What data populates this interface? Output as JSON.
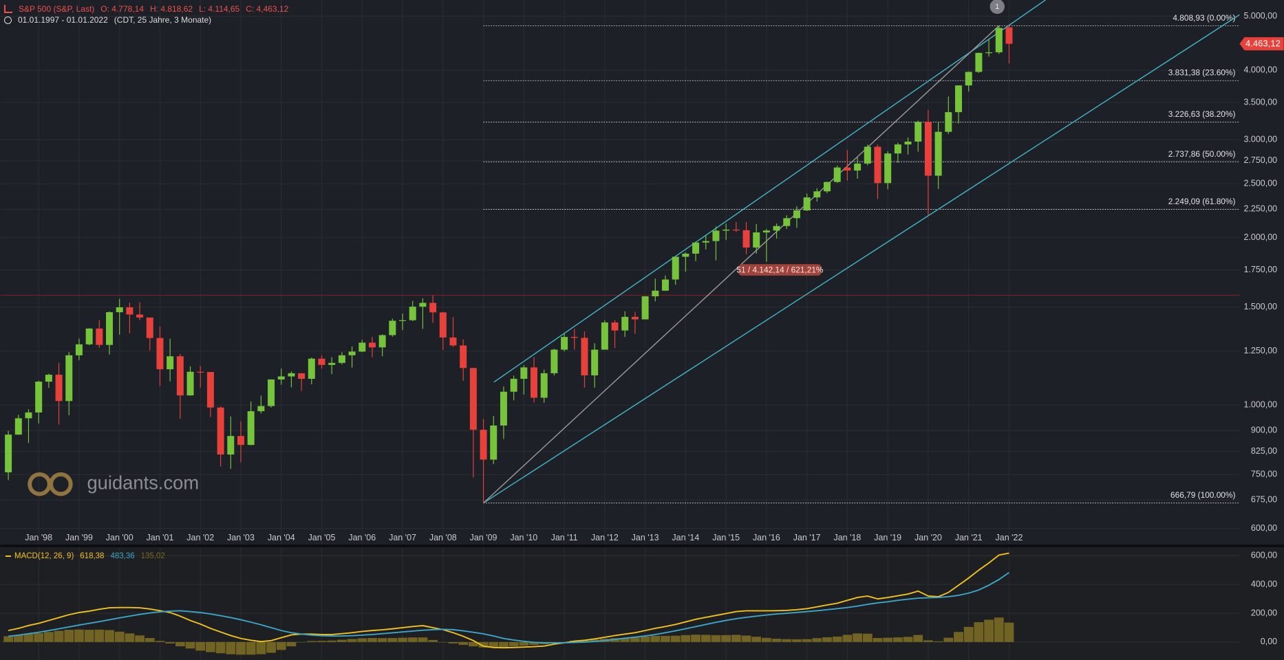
{
  "chart_data": [
    {
      "type": "candlestick",
      "title": "S&P 500 (S&P, Last)",
      "ohlc_labels": [
        "O: 4.778,14",
        "H: 4.818,62",
        "L: 4.114,65",
        "C: 4,463,12"
      ],
      "subtitle": "01.01.1997 - 01.01.2022",
      "period": "(CDT, 25 Jahre, 3 Monate)",
      "watermark": "guidants.com",
      "marker": "1",
      "annotation": "51 / 4.142,14 / 621,21%",
      "last_price_label": "4.463,12",
      "up_color": "#75c43c",
      "down_color": "#e8403b",
      "log_scale": true,
      "grid": true,
      "xlim": [
        1997.05,
        2027.7
      ],
      "ylim": [
        563,
        5350
      ],
      "xticks": [
        {
          "value": 1998,
          "label": "Jan '98"
        },
        {
          "value": 1999,
          "label": "Jan '99"
        },
        {
          "value": 2000,
          "label": "Jan '00"
        },
        {
          "value": 2001,
          "label": "Jan '01"
        },
        {
          "value": 2002,
          "label": "Jan '02"
        },
        {
          "value": 2003,
          "label": "Jan '03"
        },
        {
          "value": 2004,
          "label": "Jan '04"
        },
        {
          "value": 2005,
          "label": "Jan '05"
        },
        {
          "value": 2006,
          "label": "Jan '06"
        },
        {
          "value": 2007,
          "label": "Jan '07"
        },
        {
          "value": 2008,
          "label": "Jan '08"
        },
        {
          "value": 2009,
          "label": "Jan '09"
        },
        {
          "value": 2010,
          "label": "Jan '10"
        },
        {
          "value": 2011,
          "label": "Jan '11"
        },
        {
          "value": 2012,
          "label": "Jan '12"
        },
        {
          "value": 2013,
          "label": "Jan '13"
        },
        {
          "value": 2014,
          "label": "Jan '14"
        },
        {
          "value": 2015,
          "label": "Jan '15"
        },
        {
          "value": 2016,
          "label": "Jan '16"
        },
        {
          "value": 2017,
          "label": "Jan '17"
        },
        {
          "value": 2018,
          "label": "Jan '18"
        },
        {
          "value": 2019,
          "label": "Jan '19"
        },
        {
          "value": 2020,
          "label": "Jan '20"
        },
        {
          "value": 2021,
          "label": "Jan '21"
        },
        {
          "value": 2022,
          "label": "Jan '22"
        }
      ],
      "yticks": [
        {
          "value": 600,
          "label": "600,00"
        },
        {
          "value": 675,
          "label": "675,00"
        },
        {
          "value": 750,
          "label": "750,00"
        },
        {
          "value": 825,
          "label": "825,00"
        },
        {
          "value": 900,
          "label": "900,00"
        },
        {
          "value": 1000,
          "label": "1.000,00"
        },
        {
          "value": 1250,
          "label": "1.250,00"
        },
        {
          "value": 1500,
          "label": "1.500,00"
        },
        {
          "value": 1750,
          "label": "1.750,00"
        },
        {
          "value": 2000,
          "label": "2.000,00"
        },
        {
          "value": 2250,
          "label": "2.250,00"
        },
        {
          "value": 2500,
          "label": "2.500,00"
        },
        {
          "value": 2750,
          "label": "2.750,00"
        },
        {
          "value": 3000,
          "label": "3.000,00"
        },
        {
          "value": 3500,
          "label": "3.500,00"
        },
        {
          "value": 4000,
          "label": "4.000,00"
        },
        {
          "value": 5000,
          "label": "5.000,00"
        }
      ],
      "x": [
        1997.25,
        1997.5,
        1997.75,
        1998,
        1998.25,
        1998.5,
        1998.75,
        1999,
        1999.25,
        1999.5,
        1999.75,
        2000,
        2000.25,
        2000.5,
        2000.75,
        2001,
        2001.25,
        2001.5,
        2001.75,
        2002,
        2002.25,
        2002.5,
        2002.75,
        2003,
        2003.25,
        2003.5,
        2003.75,
        2004,
        2004.25,
        2004.5,
        2004.75,
        2005,
        2005.25,
        2005.5,
        2005.75,
        2006,
        2006.25,
        2006.5,
        2006.75,
        2007,
        2007.25,
        2007.5,
        2007.75,
        2008,
        2008.25,
        2008.5,
        2008.75,
        2009,
        2009.25,
        2009.5,
        2009.75,
        2010,
        2010.25,
        2010.5,
        2010.75,
        2011,
        2011.25,
        2011.5,
        2011.75,
        2012,
        2012.25,
        2012.5,
        2012.75,
        2013,
        2013.25,
        2013.5,
        2013.75,
        2014,
        2014.25,
        2014.5,
        2014.75,
        2015,
        2015.25,
        2015.5,
        2015.75,
        2016,
        2016.25,
        2016.5,
        2016.75,
        2017,
        2017.25,
        2017.5,
        2017.75,
        2018,
        2018.25,
        2018.5,
        2018.75,
        2019,
        2019.25,
        2019.5,
        2019.75,
        2020,
        2020.25,
        2020.5,
        2020.75,
        2021,
        2021.25,
        2021.5,
        2021.75,
        2022
      ],
      "open": [
        757,
        885,
        947,
        970,
        1102,
        1134,
        1017,
        1229,
        1286,
        1373,
        1283,
        1469,
        1499,
        1455,
        1437,
        1320,
        1160,
        1224,
        1041,
        1148,
        1147,
        990,
        815,
        880,
        848,
        975,
        996,
        1112,
        1126,
        1141,
        1115,
        1212,
        1181,
        1191,
        1229,
        1248,
        1295,
        1270,
        1336,
        1418,
        1421,
        1503,
        1527,
        1468,
        1323,
        1280,
        1166,
        903,
        798,
        919,
        1057,
        1115,
        1169,
        1031,
        1141,
        1258,
        1326,
        1321,
        1131,
        1258,
        1408,
        1362,
        1441,
        1426,
        1569,
        1606,
        1682,
        1848,
        1872,
        1960,
        1972,
        2059,
        2068,
        2063,
        1920,
        2044,
        2060,
        2099,
        2168,
        2239,
        2363,
        2423,
        2519,
        2674,
        2641,
        2718,
        2914,
        2507,
        2834,
        2942,
        2977,
        3231,
        2585,
        3100,
        3363,
        3756,
        3973,
        4298,
        4308,
        4778.14
      ],
      "high": [
        899,
        961,
        983,
        1106,
        1139,
        1191,
        1245,
        1317,
        1375,
        1421,
        1474,
        1553,
        1528,
        1531,
        1437,
        1384,
        1316,
        1236,
        1174,
        1176,
        1147,
        994,
        954,
        935,
        1015,
        1040,
        1112,
        1163,
        1150,
        1141,
        1218,
        1229,
        1219,
        1245,
        1275,
        1310,
        1326,
        1340,
        1431,
        1461,
        1540,
        1556,
        1576,
        1471,
        1440,
        1313,
        1167,
        944,
        956,
        1080,
        1130,
        1180,
        1220,
        1158,
        1263,
        1344,
        1371,
        1357,
        1292,
        1420,
        1422,
        1475,
        1471,
        1570,
        1688,
        1710,
        1849,
        1884,
        1968,
        2019,
        2094,
        2119,
        2135,
        2133,
        2116,
        2072,
        2121,
        2194,
        2278,
        2401,
        2454,
        2520,
        2695,
        2873,
        2791,
        2941,
        2940,
        2860,
        2964,
        3028,
        3247,
        3394,
        3233,
        3588,
        3760,
        3983,
        4302,
        4546,
        4809,
        4818.62
      ],
      "low": [
        733,
        884,
        855,
        927,
        1074,
        923,
        959,
        1205,
        1281,
        1268,
        1233,
        1339,
        1346,
        1422,
        1254,
        1082,
        1103,
        945,
        1040,
        1075,
        952,
        776,
        768,
        789,
        847,
        966,
        990,
        1088,
        1076,
        1060,
        1090,
        1163,
        1137,
        1183,
        1168,
        1245,
        1219,
        1224,
        1327,
        1364,
        1416,
        1371,
        1406,
        1257,
        1272,
        1106,
        741,
        667,
        783,
        869,
        1020,
        1045,
        1011,
        1010,
        1131,
        1249,
        1258,
        1075,
        1075,
        1258,
        1267,
        1326,
        1343,
        1426,
        1536,
        1604,
        1646,
        1738,
        1815,
        1904,
        1821,
        1981,
        2048,
        1867,
        1872,
        1810,
        1992,
        2074,
        2084,
        2234,
        2322,
        2405,
        2510,
        2533,
        2553,
        2698,
        2347,
        2444,
        2729,
        2822,
        2855,
        2192,
        2447,
        3073,
        3209,
        3662,
        3956,
        4233,
        4279,
        4114.65
      ],
      "close": [
        885,
        947,
        970,
        1102,
        1134,
        1017,
        1229,
        1286,
        1373,
        1283,
        1469,
        1499,
        1455,
        1437,
        1320,
        1160,
        1224,
        1041,
        1148,
        1147,
        990,
        815,
        880,
        848,
        975,
        996,
        1112,
        1126,
        1141,
        1115,
        1212,
        1181,
        1191,
        1229,
        1248,
        1295,
        1270,
        1336,
        1418,
        1421,
        1503,
        1527,
        1468,
        1323,
        1280,
        1166,
        903,
        798,
        919,
        1057,
        1115,
        1169,
        1031,
        1141,
        1258,
        1326,
        1321,
        1131,
        1258,
        1408,
        1362,
        1441,
        1426,
        1569,
        1606,
        1682,
        1848,
        1872,
        1960,
        1972,
        2059,
        2068,
        2063,
        1920,
        2044,
        2060,
        2099,
        2168,
        2239,
        2363,
        2423,
        2519,
        2674,
        2641,
        2718,
        2914,
        2507,
        2834,
        2942,
        2977,
        3231,
        2585,
        3100,
        3363,
        3756,
        3973,
        4298,
        4308,
        4766,
        4463.12
      ],
      "hline": {
        "value": 1576,
        "color": "#7a1f1f"
      },
      "fibonacci": {
        "x_start": 2009,
        "color": "#c8c8c8",
        "levels": [
          {
            "value": 4808.93,
            "label": "4.808,93 (0.00%)"
          },
          {
            "value": 3831.38,
            "label": "3.831,38 (23.60%)"
          },
          {
            "value": 3226.63,
            "label": "3.226,63 (38.20%)"
          },
          {
            "value": 2737.86,
            "label": "2.737,86 (50.00%)"
          },
          {
            "value": 2249.09,
            "label": "2.249,09 (61.80%)"
          },
          {
            "value": 666.79,
            "label": "666,79 (100.00%)"
          }
        ]
      },
      "trendlines": [
        {
          "x": [
            2009.26,
            2022.9
          ],
          "y": [
            1100,
            5350
          ],
          "color": "#3fb6c6"
        },
        {
          "x": [
            2009,
            2027.7
          ],
          "y": [
            666.79,
            5034
          ],
          "color": "#3fb6c6"
        },
        {
          "x": [
            2009,
            2021.75
          ],
          "y": [
            666.79,
            4808.93
          ],
          "color": "#9a9a9a"
        }
      ]
    },
    {
      "type": "line",
      "title": "MACD(12, 26, 9)",
      "ylim": [
        -125,
        660
      ],
      "yticks": [
        {
          "value": 0,
          "label": "0,00"
        },
        {
          "value": 200,
          "label": "200,00"
        },
        {
          "value": 400,
          "label": "400,00"
        },
        {
          "value": 600,
          "label": "600,00"
        }
      ],
      "series": [
        {
          "kind": "line",
          "color": "#f2c21b",
          "last_label": "618,38",
          "values": [
            80,
            95,
            115,
            130,
            150,
            170,
            190,
            205,
            215,
            228,
            238,
            240,
            240,
            238,
            230,
            218,
            205,
            180,
            150,
            125,
            95,
            70,
            45,
            25,
            12,
            3,
            10,
            30,
            50,
            55,
            55,
            52,
            52,
            58,
            65,
            74,
            80,
            85,
            92,
            100,
            108,
            114,
            100,
            86,
            65,
            40,
            10,
            -29,
            -38,
            -40,
            -38,
            -35,
            -32,
            -28,
            -15,
            -5,
            6,
            12,
            22,
            33,
            45,
            55,
            65,
            80,
            95,
            108,
            122,
            140,
            158,
            172,
            185,
            198,
            212,
            217,
            217,
            217,
            218,
            220,
            225,
            232,
            245,
            258,
            270,
            290,
            310,
            320,
            300,
            310,
            322,
            334,
            354,
            320,
            315,
            345,
            395,
            445,
            500,
            550,
            605,
            618.38
          ]
        },
        {
          "kind": "line",
          "color": "#3aa6c9",
          "last_label": "483,36",
          "values": [
            40,
            48,
            58,
            68,
            80,
            92,
            105,
            118,
            130,
            142,
            155,
            168,
            180,
            192,
            202,
            210,
            215,
            217,
            212,
            205,
            195,
            183,
            170,
            155,
            138,
            120,
            100,
            80,
            65,
            55,
            48,
            44,
            42,
            42,
            44,
            48,
            52,
            58,
            64,
            70,
            76,
            82,
            86,
            88,
            86,
            78,
            68,
            57,
            42,
            25,
            14,
            5,
            -2,
            -5,
            -6,
            -5,
            -3,
            0,
            4,
            10,
            18,
            27,
            34,
            42,
            52,
            65,
            78,
            92,
            107,
            122,
            137,
            150,
            162,
            172,
            180,
            188,
            195,
            200,
            206,
            212,
            218,
            225,
            232,
            240,
            250,
            262,
            272,
            280,
            290,
            298,
            305,
            308,
            310,
            315,
            325,
            340,
            362,
            395,
            435,
            483.36
          ]
        },
        {
          "kind": "bar",
          "color": "#7a6a22",
          "last_label": "135,02",
          "values": [
            40,
            47,
            57,
            62,
            70,
            78,
            85,
            87,
            85,
            86,
            83,
            72,
            60,
            46,
            28,
            8,
            -10,
            -30,
            -45,
            -60,
            -70,
            -78,
            -85,
            -88,
            -88,
            -85,
            -75,
            -55,
            -30,
            0,
            7,
            8,
            10,
            16,
            21,
            26,
            28,
            27,
            28,
            30,
            32,
            32,
            14,
            -2,
            -10,
            -20,
            -30,
            -38,
            -38,
            -35,
            -30,
            -25,
            -20,
            -15,
            -8,
            0,
            9,
            12,
            18,
            23,
            27,
            28,
            31,
            38,
            43,
            43,
            44,
            48,
            51,
            50,
            48,
            48,
            50,
            45,
            37,
            29,
            23,
            20,
            19,
            20,
            27,
            33,
            38,
            50,
            60,
            58,
            28,
            30,
            32,
            36,
            49,
            12,
            5,
            30,
            70,
            105,
            138,
            155,
            170,
            135.02
          ]
        }
      ]
    }
  ]
}
